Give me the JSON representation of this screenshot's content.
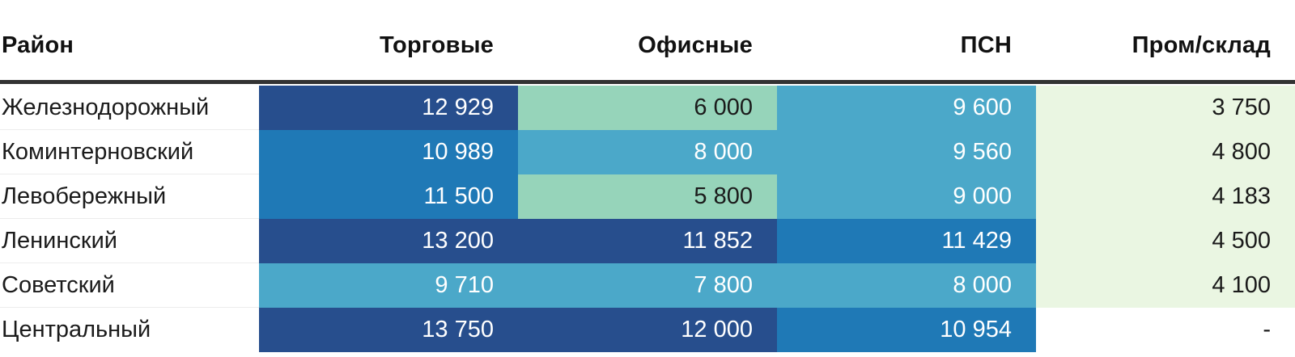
{
  "header": {
    "district": "Район",
    "cols": [
      "Торговые",
      "Офисные",
      "ПСН",
      "Пром/склад"
    ]
  },
  "palette": {
    "navy": {
      "bg": "#274E8D",
      "fg": "#FFFFFF"
    },
    "blue": {
      "bg": "#1F79B6",
      "fg": "#FFFFFF"
    },
    "teal": {
      "bg": "#4BA8C9",
      "fg": "#FFFFFF"
    },
    "green": {
      "bg": "#96D4BA",
      "fg": "#1B1B1B"
    },
    "pale": {
      "bg": "#EAF6E2",
      "fg": "#1B1B1B"
    },
    "none": {
      "bg": "#FFFFFF",
      "fg": "#1B1B1B"
    }
  },
  "header_border_color": "#333333",
  "row_separator_color": "#ECECEC",
  "rows": [
    {
      "district": "Железнодорожный",
      "cells": [
        {
          "text": "12 929",
          "level": "navy"
        },
        {
          "text": "6 000",
          "level": "green"
        },
        {
          "text": "9 600",
          "level": "teal"
        },
        {
          "text": "3 750",
          "level": "pale"
        }
      ]
    },
    {
      "district": "Коминтерновский",
      "cells": [
        {
          "text": "10 989",
          "level": "blue"
        },
        {
          "text": "8 000",
          "level": "teal"
        },
        {
          "text": "9 560",
          "level": "teal"
        },
        {
          "text": "4 800",
          "level": "pale"
        }
      ]
    },
    {
      "district": "Левобережный",
      "cells": [
        {
          "text": "11 500",
          "level": "blue"
        },
        {
          "text": "5 800",
          "level": "green"
        },
        {
          "text": "9 000",
          "level": "teal"
        },
        {
          "text": "4 183",
          "level": "pale"
        }
      ]
    },
    {
      "district": "Ленинский",
      "cells": [
        {
          "text": "13 200",
          "level": "navy"
        },
        {
          "text": "11 852",
          "level": "navy"
        },
        {
          "text": "11 429",
          "level": "blue"
        },
        {
          "text": "4 500",
          "level": "pale"
        }
      ]
    },
    {
      "district": "Советский",
      "cells": [
        {
          "text": "9 710",
          "level": "teal"
        },
        {
          "text": "7 800",
          "level": "teal"
        },
        {
          "text": "8 000",
          "level": "teal"
        },
        {
          "text": "4 100",
          "level": "pale"
        }
      ]
    },
    {
      "district": "Центральный",
      "cells": [
        {
          "text": "13 750",
          "level": "navy"
        },
        {
          "text": "12 000",
          "level": "navy"
        },
        {
          "text": "10 954",
          "level": "blue"
        },
        {
          "text": "-",
          "level": "none"
        }
      ]
    }
  ],
  "chart_data": {
    "type": "heatmap",
    "title": "",
    "columns": [
      "Торговые",
      "Офисные",
      "ПСН",
      "Пром/склад"
    ],
    "rows": [
      "Железнодорожный",
      "Коминтерновский",
      "Левобережный",
      "Ленинский",
      "Советский",
      "Центральный"
    ],
    "row_header_label": "Район",
    "values": [
      [
        12929,
        6000,
        9600,
        3750
      ],
      [
        10989,
        8000,
        9560,
        4800
      ],
      [
        11500,
        5800,
        9000,
        4183
      ],
      [
        13200,
        11852,
        11429,
        4500
      ],
      [
        9710,
        7800,
        8000,
        4100
      ],
      [
        13750,
        12000,
        10954,
        null
      ]
    ],
    "legend_position": "none",
    "grid": false,
    "color_scale_note": "higher value = darker blue, lower value = lighter green"
  }
}
